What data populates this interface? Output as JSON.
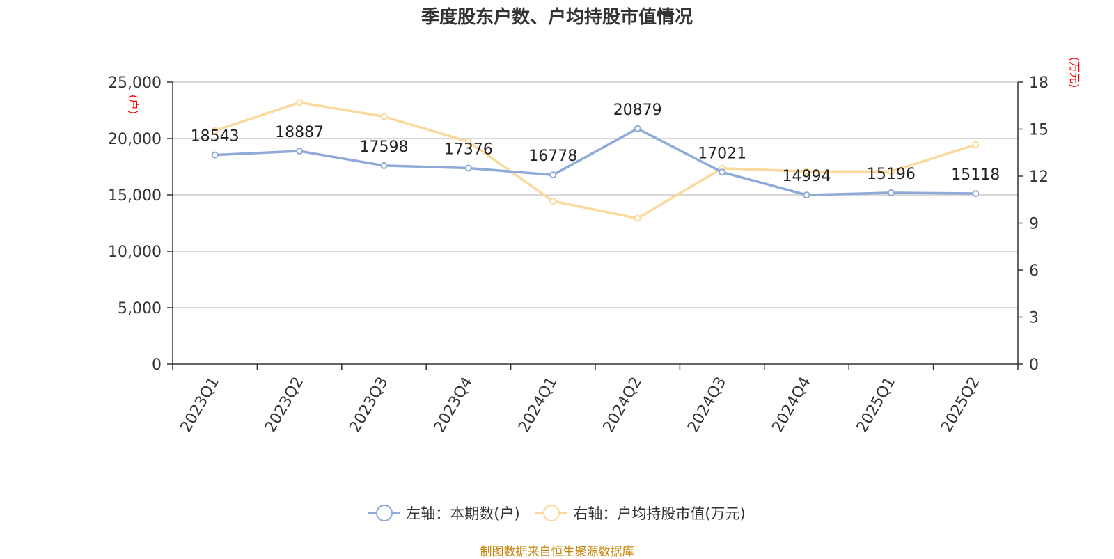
{
  "title": "季度股东户数、户均持股市值情况",
  "source": "制图数据来自恒生聚源数据库",
  "colors": {
    "left_series": "#8eaad8",
    "right_series": "#fcd89c",
    "unit_label": "#ff0000",
    "source": "#c8860d"
  },
  "legend": {
    "left_label": "左轴：本期数(户)",
    "right_label": "右轴：户均持股市值(万元)"
  },
  "chart_data": {
    "type": "line",
    "title": "季度股东户数、户均持股市值情况",
    "categories": [
      "2023Q1",
      "2023Q2",
      "2023Q3",
      "2023Q4",
      "2024Q1",
      "2024Q2",
      "2024Q3",
      "2024Q4",
      "2025Q1",
      "2025Q2"
    ],
    "y_left": {
      "unit_label": "(户)",
      "ylim": [
        0,
        25000
      ],
      "ticks": [
        "0",
        "5,000",
        "10,000",
        "15,000",
        "20,000",
        "25,000"
      ],
      "tick_values": [
        0,
        5000,
        10000,
        15000,
        20000,
        25000
      ]
    },
    "y_right": {
      "unit_label": "(万元)",
      "ylim": [
        0,
        18
      ],
      "ticks": [
        "0",
        "3",
        "6",
        "9",
        "12",
        "15",
        "18"
      ],
      "tick_values": [
        0,
        3,
        6,
        9,
        12,
        15,
        18
      ]
    },
    "grid": true,
    "legend_position": "bottom",
    "series": [
      {
        "name": "左轴：本期数(户)",
        "axis": "left",
        "values": [
          18543,
          18887,
          17598,
          17376,
          16778,
          20879,
          17021,
          14994,
          15196,
          15118
        ],
        "labels": [
          "18543",
          "18887",
          "17598",
          "17376",
          "16778",
          "20879",
          "17021",
          "14994",
          "15196",
          "15118"
        ]
      },
      {
        "name": "右轴：户均持股市值(万元)",
        "axis": "right",
        "values": [
          14.9,
          16.7,
          15.8,
          14.2,
          10.4,
          9.3,
          12.5,
          12.3,
          12.3,
          14.0
        ]
      }
    ]
  }
}
